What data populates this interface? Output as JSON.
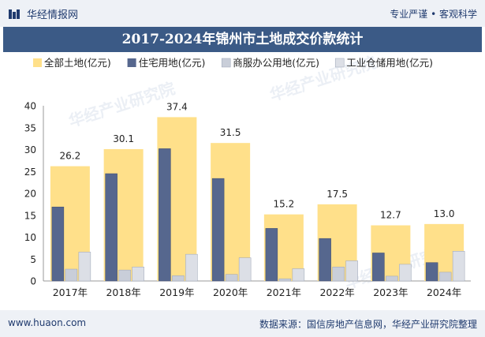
{
  "header": {
    "brand": "华经情报网",
    "tagline": "专业严谨 • 客观科学"
  },
  "footer": {
    "website": "www.huaon.com",
    "source": "数据来源：国信房地产信息网，华经产业研究院整理"
  },
  "watermark": "华经产业研究院",
  "colors": {
    "all_land": "#ffe08a",
    "residential": "#56678e",
    "commercial_office": "#c9ced9",
    "industrial_storage": "#dcdfe6",
    "title_bg": "#3b5a86"
  },
  "chart_data": {
    "type": "bar",
    "title": "2017-2024年锦州市土地成交价款统计",
    "categories": [
      "2017年",
      "2018年",
      "2019年",
      "2020年",
      "2021年",
      "2022年",
      "2023年",
      "2024年"
    ],
    "series": [
      {
        "name": "全部土地(亿元)",
        "values": [
          26.2,
          30.1,
          37.4,
          31.5,
          15.2,
          17.5,
          12.7,
          13.0
        ],
        "labels": [
          "26.2",
          "30.1",
          "37.4",
          "31.5",
          "15.2",
          "17.5",
          "12.7",
          "13.0"
        ]
      },
      {
        "name": "住宅用地(亿元)",
        "values": [
          16.9,
          24.5,
          30.2,
          23.4,
          12.0,
          9.7,
          6.4,
          4.2
        ]
      },
      {
        "name": "商服办公用地(亿元)",
        "values": [
          2.7,
          2.5,
          1.2,
          1.5,
          0.5,
          3.2,
          1.1,
          2.0
        ]
      },
      {
        "name": "工业仓储用地(亿元)",
        "values": [
          6.6,
          3.2,
          6.1,
          5.3,
          2.8,
          4.6,
          3.8,
          6.8
        ]
      }
    ],
    "ylim": [
      0,
      40
    ],
    "yticks": [
      0,
      5,
      10,
      15,
      20,
      25,
      30,
      35,
      40
    ],
    "xlabel": "",
    "ylabel": "",
    "legend_position": "top",
    "grid": false
  }
}
